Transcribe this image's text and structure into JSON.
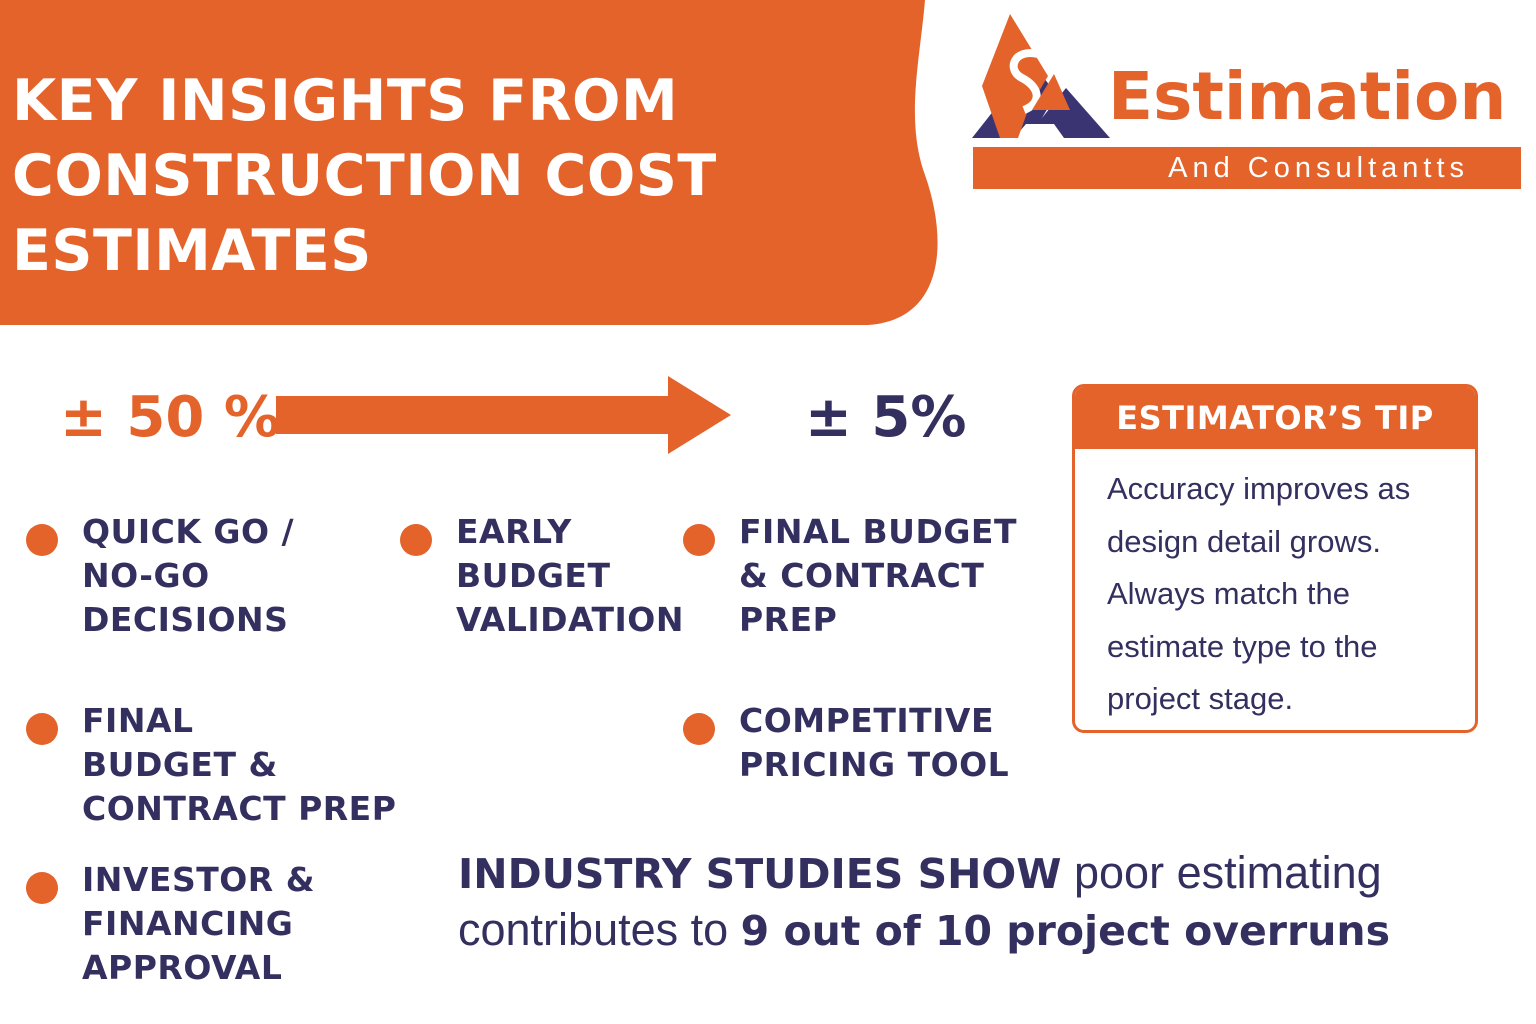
{
  "header": {
    "title_lines": [
      "KEY INSIGHTS FROM",
      "CONSTRUCTION COST",
      "ESTIMATES"
    ]
  },
  "logo": {
    "word": "Estimation",
    "subtitle": "And Consultantts",
    "colors": {
      "orange": "#e3632b",
      "navy": "#3b3472"
    }
  },
  "accuracy": {
    "start": "± 50 %",
    "end": "± 5%"
  },
  "bullets": [
    {
      "text": "QUICK GO /\nNO-GO\nDECISIONS"
    },
    {
      "text": "EARLY\nBUDGET\nVALIDATION"
    },
    {
      "text": "FINAL BUDGET\n& CONTRACT\nPREP"
    },
    {
      "text": "FINAL\nBUDGET &\nCONTRACT PREP"
    },
    {
      "text": "COMPETITIVE\nPRICING TOOL"
    },
    {
      "text": "INVESTOR &\nFINANCING\nAPPROVAL"
    }
  ],
  "tip": {
    "heading": "ESTIMATOR’S TIP",
    "body": "Accuracy improves as design detail grows. Always match the estimate type to the project stage."
  },
  "stat": {
    "lead_bold": "INDUSTRY STUDIES SHOW",
    "middle": " poor estimating contributes to ",
    "end_bold": "9 out of 10 project overruns"
  },
  "colors": {
    "orange": "#e3632b",
    "navy": "#33305f",
    "background": "#ffffff"
  }
}
